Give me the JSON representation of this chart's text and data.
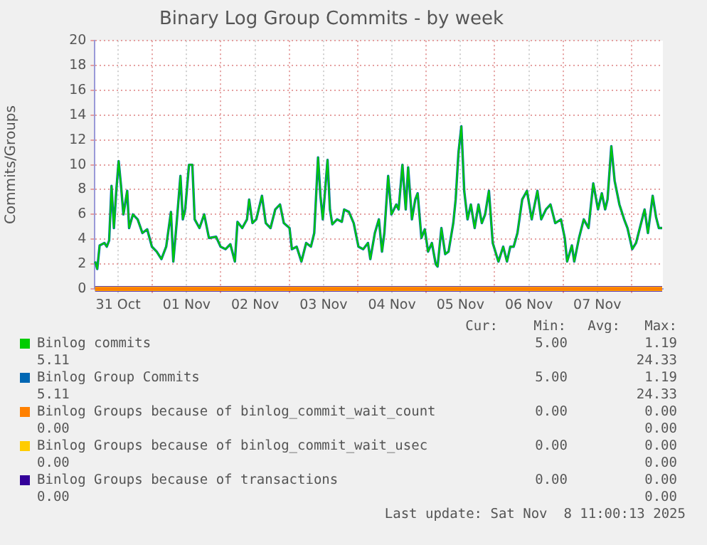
{
  "chart_data": {
    "type": "line",
    "title": "Binary Log Group Commits - by week",
    "ylabel": "Commits/Groups",
    "xlim": [
      "2025-10-31T03:50",
      "2025-11-08T11:00"
    ],
    "xticks": [
      {
        "value": "2025-10-31T12:00",
        "label": "31 Oct"
      },
      {
        "value": "2025-11-01T00:00",
        "label": null
      },
      {
        "value": "2025-11-01T12:00",
        "label": "01 Nov"
      },
      {
        "value": "2025-11-02T00:00",
        "label": null
      },
      {
        "value": "2025-11-02T12:00",
        "label": "02 Nov"
      },
      {
        "value": "2025-11-03T00:00",
        "label": null
      },
      {
        "value": "2025-11-03T12:00",
        "label": "03 Nov"
      },
      {
        "value": "2025-11-04T00:00",
        "label": null
      },
      {
        "value": "2025-11-04T12:00",
        "label": "04 Nov"
      },
      {
        "value": "2025-11-05T00:00",
        "label": null
      },
      {
        "value": "2025-11-05T12:00",
        "label": "05 Nov"
      },
      {
        "value": "2025-11-06T00:00",
        "label": null
      },
      {
        "value": "2025-11-06T12:00",
        "label": "06 Nov"
      },
      {
        "value": "2025-11-07T00:00",
        "label": null
      },
      {
        "value": "2025-11-07T12:00",
        "label": "07 Nov"
      },
      {
        "value": "2025-11-08T00:00",
        "label": null
      }
    ],
    "ylim": [
      0,
      20
    ],
    "yticks": [
      0,
      2,
      4,
      6,
      8,
      10,
      12,
      14,
      16,
      18,
      20
    ],
    "grid": true,
    "legend": "bottom",
    "marker": "none",
    "line_style": "solid",
    "x": [
      "2025-10-31T03:55",
      "2025-10-31T04:40",
      "2025-10-31T05:30",
      "2025-10-31T07:10",
      "2025-10-31T08:00",
      "2025-10-31T08:50",
      "2025-10-31T09:40",
      "2025-10-31T10:30",
      "2025-10-31T11:20",
      "2025-10-31T12:10",
      "2025-10-31T13:00",
      "2025-10-31T13:50",
      "2025-10-31T15:10",
      "2025-10-31T15:50",
      "2025-10-31T17:10",
      "2025-10-31T18:50",
      "2025-10-31T20:30",
      "2025-10-31T22:10",
      "2025-10-31T23:50",
      "2025-11-01T01:30",
      "2025-11-01T03:10",
      "2025-11-01T04:50",
      "2025-11-01T06:30",
      "2025-11-01T07:20",
      "2025-11-01T08:30",
      "2025-11-01T09:50",
      "2025-11-01T10:40",
      "2025-11-01T11:30",
      "2025-11-01T12:50",
      "2025-11-01T14:00",
      "2025-11-01T14:50",
      "2025-11-01T16:30",
      "2025-11-01T18:10",
      "2025-11-01T19:50",
      "2025-11-01T22:20",
      "2025-11-01T23:55",
      "2025-11-02T01:40",
      "2025-11-02T03:20",
      "2025-11-02T04:55",
      "2025-11-02T05:50",
      "2025-11-02T07:30",
      "2025-11-02T09:10",
      "2025-11-02T09:55",
      "2025-11-02T11:05",
      "2025-11-02T12:25",
      "2025-11-02T14:25",
      "2025-11-02T15:45",
      "2025-11-02T17:25",
      "2025-11-02T19:05",
      "2025-11-02T20:45",
      "2025-11-02T22:05",
      "2025-11-03T00:05",
      "2025-11-03T00:55",
      "2025-11-03T02:35",
      "2025-11-03T04:15",
      "2025-11-03T05:55",
      "2025-11-03T07:35",
      "2025-11-03T08:45",
      "2025-11-03T10:05",
      "2025-11-03T10:55",
      "2025-11-03T11:45",
      "2025-11-03T13:25",
      "2025-11-03T14:15",
      "2025-11-03T15:05",
      "2025-11-03T16:45",
      "2025-11-03T18:25",
      "2025-11-03T19:15",
      "2025-11-03T20:55",
      "2025-11-03T22:35",
      "2025-11-04T00:15",
      "2025-11-04T01:55",
      "2025-11-04T03:35",
      "2025-11-04T04:25",
      "2025-11-04T06:00",
      "2025-11-04T07:25",
      "2025-11-04T08:30",
      "2025-11-04T09:20",
      "2025-11-04T10:40",
      "2025-11-04T11:50",
      "2025-11-04T13:30",
      "2025-11-04T14:20",
      "2025-11-04T15:40",
      "2025-11-04T16:50",
      "2025-11-04T17:40",
      "2025-11-04T19:00",
      "2025-11-04T20:10",
      "2025-11-04T21:00",
      "2025-11-04T22:20",
      "2025-11-04T23:30",
      "2025-11-05T00:40",
      "2025-11-05T02:00",
      "2025-11-05T03:20",
      "2025-11-05T04:00",
      "2025-11-05T05:20",
      "2025-11-05T06:40",
      "2025-11-05T07:50",
      "2025-11-05T09:30",
      "2025-11-05T10:20",
      "2025-11-05T11:20",
      "2025-11-05T12:20",
      "2025-11-05T13:20",
      "2025-11-05T14:30",
      "2025-11-05T15:40",
      "2025-11-05T17:00",
      "2025-11-05T18:20",
      "2025-11-05T19:30",
      "2025-11-05T20:40",
      "2025-11-05T22:00",
      "2025-11-05T23:20",
      "2025-11-06T01:20",
      "2025-11-06T03:00",
      "2025-11-06T04:20",
      "2025-11-06T05:30",
      "2025-11-06T06:40",
      "2025-11-06T08:00",
      "2025-11-06T09:40",
      "2025-11-06T11:20",
      "2025-11-06T13:00",
      "2025-11-06T15:00",
      "2025-11-06T16:20",
      "2025-11-06T18:00",
      "2025-11-06T19:35",
      "2025-11-06T21:15",
      "2025-11-06T23:15",
      "2025-11-07T00:35",
      "2025-11-07T01:25",
      "2025-11-07T03:05",
      "2025-11-07T03:55",
      "2025-11-07T05:35",
      "2025-11-07T07:15",
      "2025-11-07T08:55",
      "2025-11-07T10:35",
      "2025-11-07T12:15",
      "2025-11-07T13:35",
      "2025-11-07T14:45",
      "2025-11-07T15:35",
      "2025-11-07T16:55",
      "2025-11-07T18:05",
      "2025-11-07T19:45",
      "2025-11-07T21:25",
      "2025-11-07T22:35",
      "2025-11-08T00:15",
      "2025-11-08T01:35",
      "2025-11-08T02:55",
      "2025-11-08T04:35",
      "2025-11-08T05:45",
      "2025-11-08T07:25",
      "2025-11-08T08:35",
      "2025-11-08T09:35",
      "2025-11-08T10:45"
    ],
    "series": [
      {
        "name": "Binlog commits",
        "color": "#00cc00",
        "values": [
          2.2,
          1.6,
          3.5,
          3.7,
          3.4,
          3.9,
          8.3,
          4.9,
          7.9,
          10.3,
          8.3,
          6.0,
          7.9,
          4.9,
          6.0,
          5.6,
          4.5,
          4.8,
          3.4,
          3.0,
          2.4,
          3.4,
          6.2,
          2.2,
          5.3,
          9.1,
          5.6,
          6.4,
          10.0,
          10.0,
          5.6,
          4.9,
          6.0,
          4.1,
          4.2,
          3.4,
          3.2,
          3.6,
          2.2,
          5.4,
          4.9,
          5.6,
          7.2,
          5.3,
          5.6,
          7.5,
          5.3,
          4.9,
          6.4,
          6.8,
          5.3,
          4.9,
          3.2,
          3.4,
          2.2,
          3.7,
          3.4,
          4.5,
          10.6,
          7.5,
          5.6,
          10.4,
          6.4,
          5.2,
          5.6,
          5.4,
          6.4,
          6.2,
          5.3,
          3.4,
          3.2,
          3.7,
          2.4,
          4.5,
          5.6,
          3.0,
          4.5,
          9.1,
          6.0,
          6.8,
          6.4,
          10.0,
          6.4,
          9.8,
          5.6,
          7.2,
          7.7,
          4.1,
          4.8,
          3.0,
          3.7,
          2.0,
          1.8,
          4.9,
          2.8,
          3.0,
          5.3,
          7.2,
          11.0,
          13.1,
          7.9,
          5.6,
          6.8,
          4.9,
          6.8,
          5.3,
          6.0,
          7.9,
          3.7,
          2.2,
          3.4,
          2.2,
          3.4,
          3.4,
          4.5,
          7.2,
          7.9,
          5.6,
          7.9,
          5.6,
          6.4,
          6.8,
          5.3,
          5.6,
          4.1,
          2.2,
          3.5,
          2.2,
          4.1,
          5.6,
          4.9,
          8.5,
          6.4,
          7.7,
          6.4,
          7.2,
          11.5,
          8.7,
          6.8,
          5.6,
          4.9,
          3.2,
          3.7,
          4.9,
          6.4,
          4.5,
          7.5,
          5.8,
          4.9,
          4.9
        ]
      },
      {
        "name": "Binlog Group Commits",
        "color": "#0066b3",
        "values": [
          2.2,
          1.6,
          3.5,
          3.7,
          3.4,
          3.9,
          8.3,
          4.9,
          7.9,
          10.3,
          8.3,
          6.0,
          7.9,
          4.9,
          6.0,
          5.6,
          4.5,
          4.8,
          3.4,
          3.0,
          2.4,
          3.4,
          6.2,
          2.2,
          5.3,
          9.1,
          5.6,
          6.4,
          10.0,
          10.0,
          5.6,
          4.9,
          6.0,
          4.1,
          4.2,
          3.4,
          3.2,
          3.6,
          2.2,
          5.4,
          4.9,
          5.6,
          7.2,
          5.3,
          5.6,
          7.5,
          5.3,
          4.9,
          6.4,
          6.8,
          5.3,
          4.9,
          3.2,
          3.4,
          2.2,
          3.7,
          3.4,
          4.5,
          10.6,
          7.5,
          5.6,
          10.4,
          6.4,
          5.2,
          5.6,
          5.4,
          6.4,
          6.2,
          5.3,
          3.4,
          3.2,
          3.7,
          2.4,
          4.5,
          5.6,
          3.0,
          4.5,
          9.1,
          6.0,
          6.8,
          6.4,
          10.0,
          6.4,
          9.8,
          5.6,
          7.2,
          7.7,
          4.1,
          4.8,
          3.0,
          3.7,
          2.0,
          1.8,
          4.9,
          2.8,
          3.0,
          5.3,
          7.2,
          11.0,
          13.1,
          7.9,
          5.6,
          6.8,
          4.9,
          6.8,
          5.3,
          6.0,
          7.9,
          3.7,
          2.2,
          3.4,
          2.2,
          3.4,
          3.4,
          4.5,
          7.2,
          7.9,
          5.6,
          7.9,
          5.6,
          6.4,
          6.8,
          5.3,
          5.6,
          4.1,
          2.2,
          3.5,
          2.2,
          4.1,
          5.6,
          4.9,
          8.5,
          6.4,
          7.7,
          6.4,
          7.2,
          11.5,
          8.7,
          6.8,
          5.6,
          4.9,
          3.2,
          3.7,
          4.9,
          6.4,
          4.5,
          7.5,
          5.8,
          4.9,
          4.9
        ]
      },
      {
        "name": "Binlog Groups because of binlog_commit_wait_count",
        "color": "#ff8000",
        "x": [
          "2025-10-31T03:55",
          "2025-11-08T10:45"
        ],
        "values": [
          0,
          0
        ]
      },
      {
        "name": "Binlog Groups because of binlog_commit_wait_usec",
        "color": "#ffcc00",
        "x": [
          "2025-10-31T03:55",
          "2025-11-08T10:45"
        ],
        "values": [
          0,
          0
        ]
      },
      {
        "name": "Binlog Groups because of transactions",
        "color": "#330099",
        "x": [
          "2025-10-31T03:55",
          "2025-11-08T10:45"
        ],
        "values": [
          0,
          0
        ]
      }
    ],
    "annotations": [
      "Cur:",
      "Min:",
      "Avg:",
      "Max:",
      "5.00",
      "1.19",
      "5.11",
      "24.33",
      "5.00",
      "1.19",
      "5.11",
      "24.33",
      "0.00",
      "0.00",
      "0.00",
      "0.00",
      "0.00",
      "0.00",
      "0.00",
      "0.00",
      "0.00",
      "0.00",
      "0.00",
      "0.00",
      "Last update: Sat Nov  8 11:00:13 2025"
    ]
  }
}
